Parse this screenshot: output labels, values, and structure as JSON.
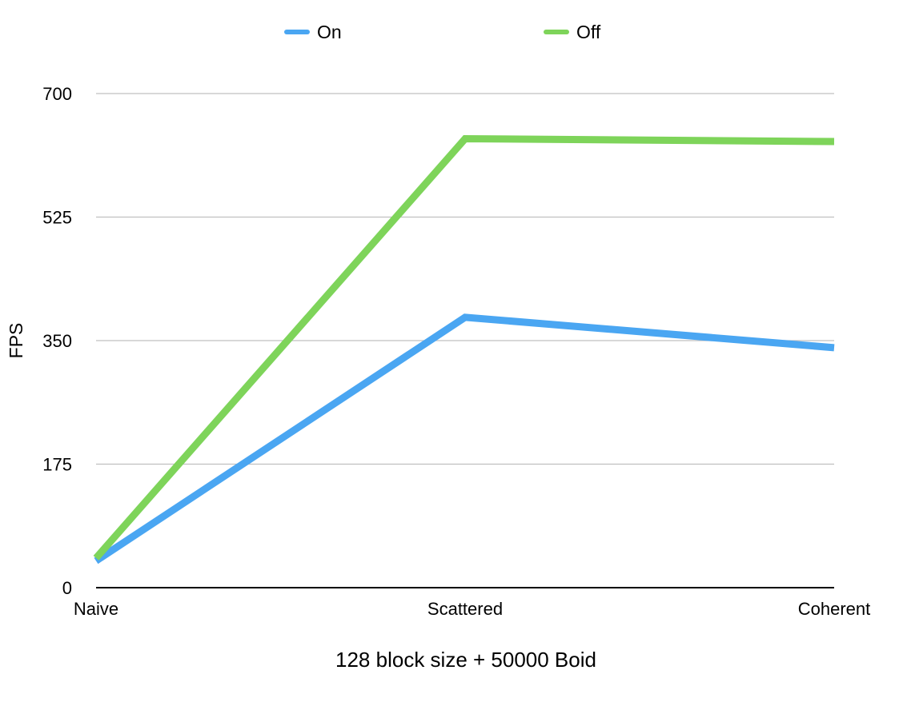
{
  "chart_data": {
    "type": "line",
    "categories": [
      "Naive",
      "Scattered",
      "Coherent"
    ],
    "series": [
      {
        "name": "On",
        "values": [
          38,
          383,
          340
        ],
        "color": "#4aa6f2"
      },
      {
        "name": "Off",
        "values": [
          42,
          636,
          632
        ],
        "color": "#7ed45a"
      }
    ],
    "title": "",
    "xlabel": "128 block size + 50000 Boid",
    "ylabel": "FPS",
    "ylim": [
      0,
      700
    ],
    "yticks": [
      0,
      175,
      350,
      525,
      700
    ],
    "grid": true,
    "legend": "top-center"
  }
}
